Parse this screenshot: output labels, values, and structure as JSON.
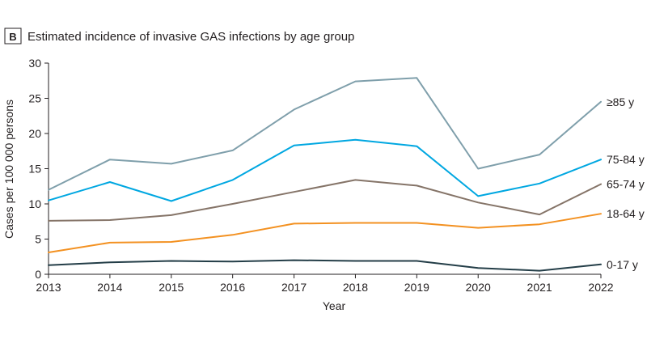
{
  "chart_data": {
    "type": "line",
    "panel_letter": "B",
    "title": "Estimated incidence of invasive GAS infections by age group",
    "xlabel": "Year",
    "ylabel": "Cases per 100 000 persons",
    "x": [
      2013,
      2014,
      2015,
      2016,
      2017,
      2018,
      2019,
      2020,
      2021,
      2022
    ],
    "x_tick_labels": [
      "2013",
      "2014",
      "2015",
      "2016",
      "2017",
      "2018",
      "2019",
      "2020",
      "2021",
      "2022"
    ],
    "ylim": [
      0,
      30
    ],
    "y_ticks": [
      0,
      5,
      10,
      15,
      20,
      25,
      30
    ],
    "y_tick_labels": [
      "0",
      "5",
      "10",
      "15",
      "20",
      "25",
      "30"
    ],
    "grid": false,
    "legend": "direct labels at right end of each line",
    "series": [
      {
        "name": "≥85 y",
        "color": "#7f9fab",
        "values": [
          12.0,
          16.3,
          15.7,
          17.6,
          23.4,
          27.4,
          27.9,
          15.0,
          17.0,
          24.5
        ]
      },
      {
        "name": "75-84 y",
        "color": "#00a7e1",
        "values": [
          10.5,
          13.1,
          10.4,
          13.4,
          18.3,
          19.1,
          18.2,
          11.1,
          12.9,
          16.3
        ]
      },
      {
        "name": "65-74 y",
        "color": "#857468",
        "values": [
          7.6,
          7.7,
          8.4,
          10.0,
          11.7,
          13.4,
          12.6,
          10.2,
          8.5,
          12.8
        ]
      },
      {
        "name": "18-64 y",
        "color": "#f39121",
        "values": [
          3.1,
          4.5,
          4.6,
          5.6,
          7.2,
          7.3,
          7.3,
          6.6,
          7.1,
          8.6
        ]
      },
      {
        "name": "0-17 y",
        "color": "#243e48",
        "values": [
          1.3,
          1.7,
          1.9,
          1.8,
          2.0,
          1.9,
          1.9,
          0.9,
          0.5,
          1.4
        ]
      }
    ]
  }
}
